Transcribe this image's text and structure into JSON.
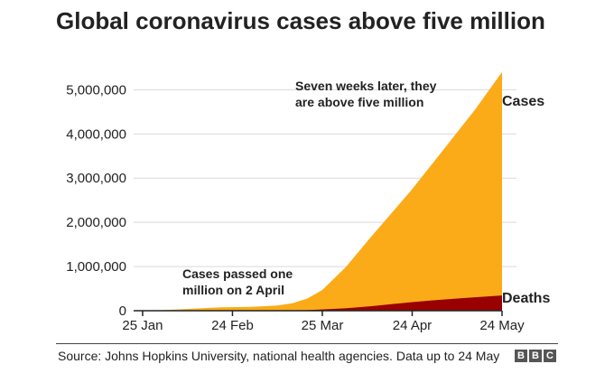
{
  "title": "Global coronavirus cases above five million",
  "source": "Source: Johns Hopkins University, national health agencies. Data up to 24 May",
  "logo": [
    "B",
    "B",
    "C"
  ],
  "colors": {
    "cases": "#fbab18",
    "deaths": "#990000",
    "grid": "#d9d9d9",
    "axis": "#222222"
  },
  "chart_data": {
    "type": "area",
    "title": "Global coronavirus cases above five million",
    "xlabel": "",
    "ylabel": "",
    "x_ticks": [
      "25 Jan",
      "24 Feb",
      "25 Mar",
      "24 Apr",
      "24 May"
    ],
    "y_ticks": [
      0,
      1000000,
      2000000,
      3000000,
      4000000,
      5000000
    ],
    "y_tick_labels": [
      "0",
      "1,000,000",
      "2,000,000",
      "3,000,000",
      "4,000,000",
      "5,000,000"
    ],
    "xlim": [
      "2020-01-22",
      "2020-05-24"
    ],
    "ylim": [
      0,
      5600000
    ],
    "grid": "horizontal",
    "series": [
      {
        "name": "Cases",
        "x": [
          "2020-01-22",
          "2020-02-01",
          "2020-02-10",
          "2020-02-20",
          "2020-03-01",
          "2020-03-10",
          "2020-03-15",
          "2020-03-20",
          "2020-03-25",
          "2020-04-02",
          "2020-04-10",
          "2020-04-17",
          "2020-04-24",
          "2020-05-01",
          "2020-05-08",
          "2020-05-15",
          "2020-05-24"
        ],
        "values": [
          600,
          12000,
          43000,
          76000,
          88000,
          118000,
          170000,
          275000,
          470000,
          1000000,
          1650000,
          2200000,
          2750000,
          3350000,
          3950000,
          4550000,
          5400000
        ]
      },
      {
        "name": "Deaths",
        "x": [
          "2020-01-22",
          "2020-02-20",
          "2020-03-10",
          "2020-03-20",
          "2020-04-02",
          "2020-04-10",
          "2020-04-17",
          "2020-04-24",
          "2020-05-01",
          "2020-05-08",
          "2020-05-15",
          "2020-05-24"
        ],
        "values": [
          0,
          2200,
          4300,
          12000,
          55000,
          100000,
          150000,
          195000,
          235000,
          270000,
          305000,
          345000
        ]
      }
    ],
    "annotations": [
      {
        "lines": [
          "Seven weeks later, they",
          "are above five million"
        ]
      },
      {
        "lines": [
          "Cases passed one",
          "million on 2 April"
        ]
      }
    ]
  }
}
